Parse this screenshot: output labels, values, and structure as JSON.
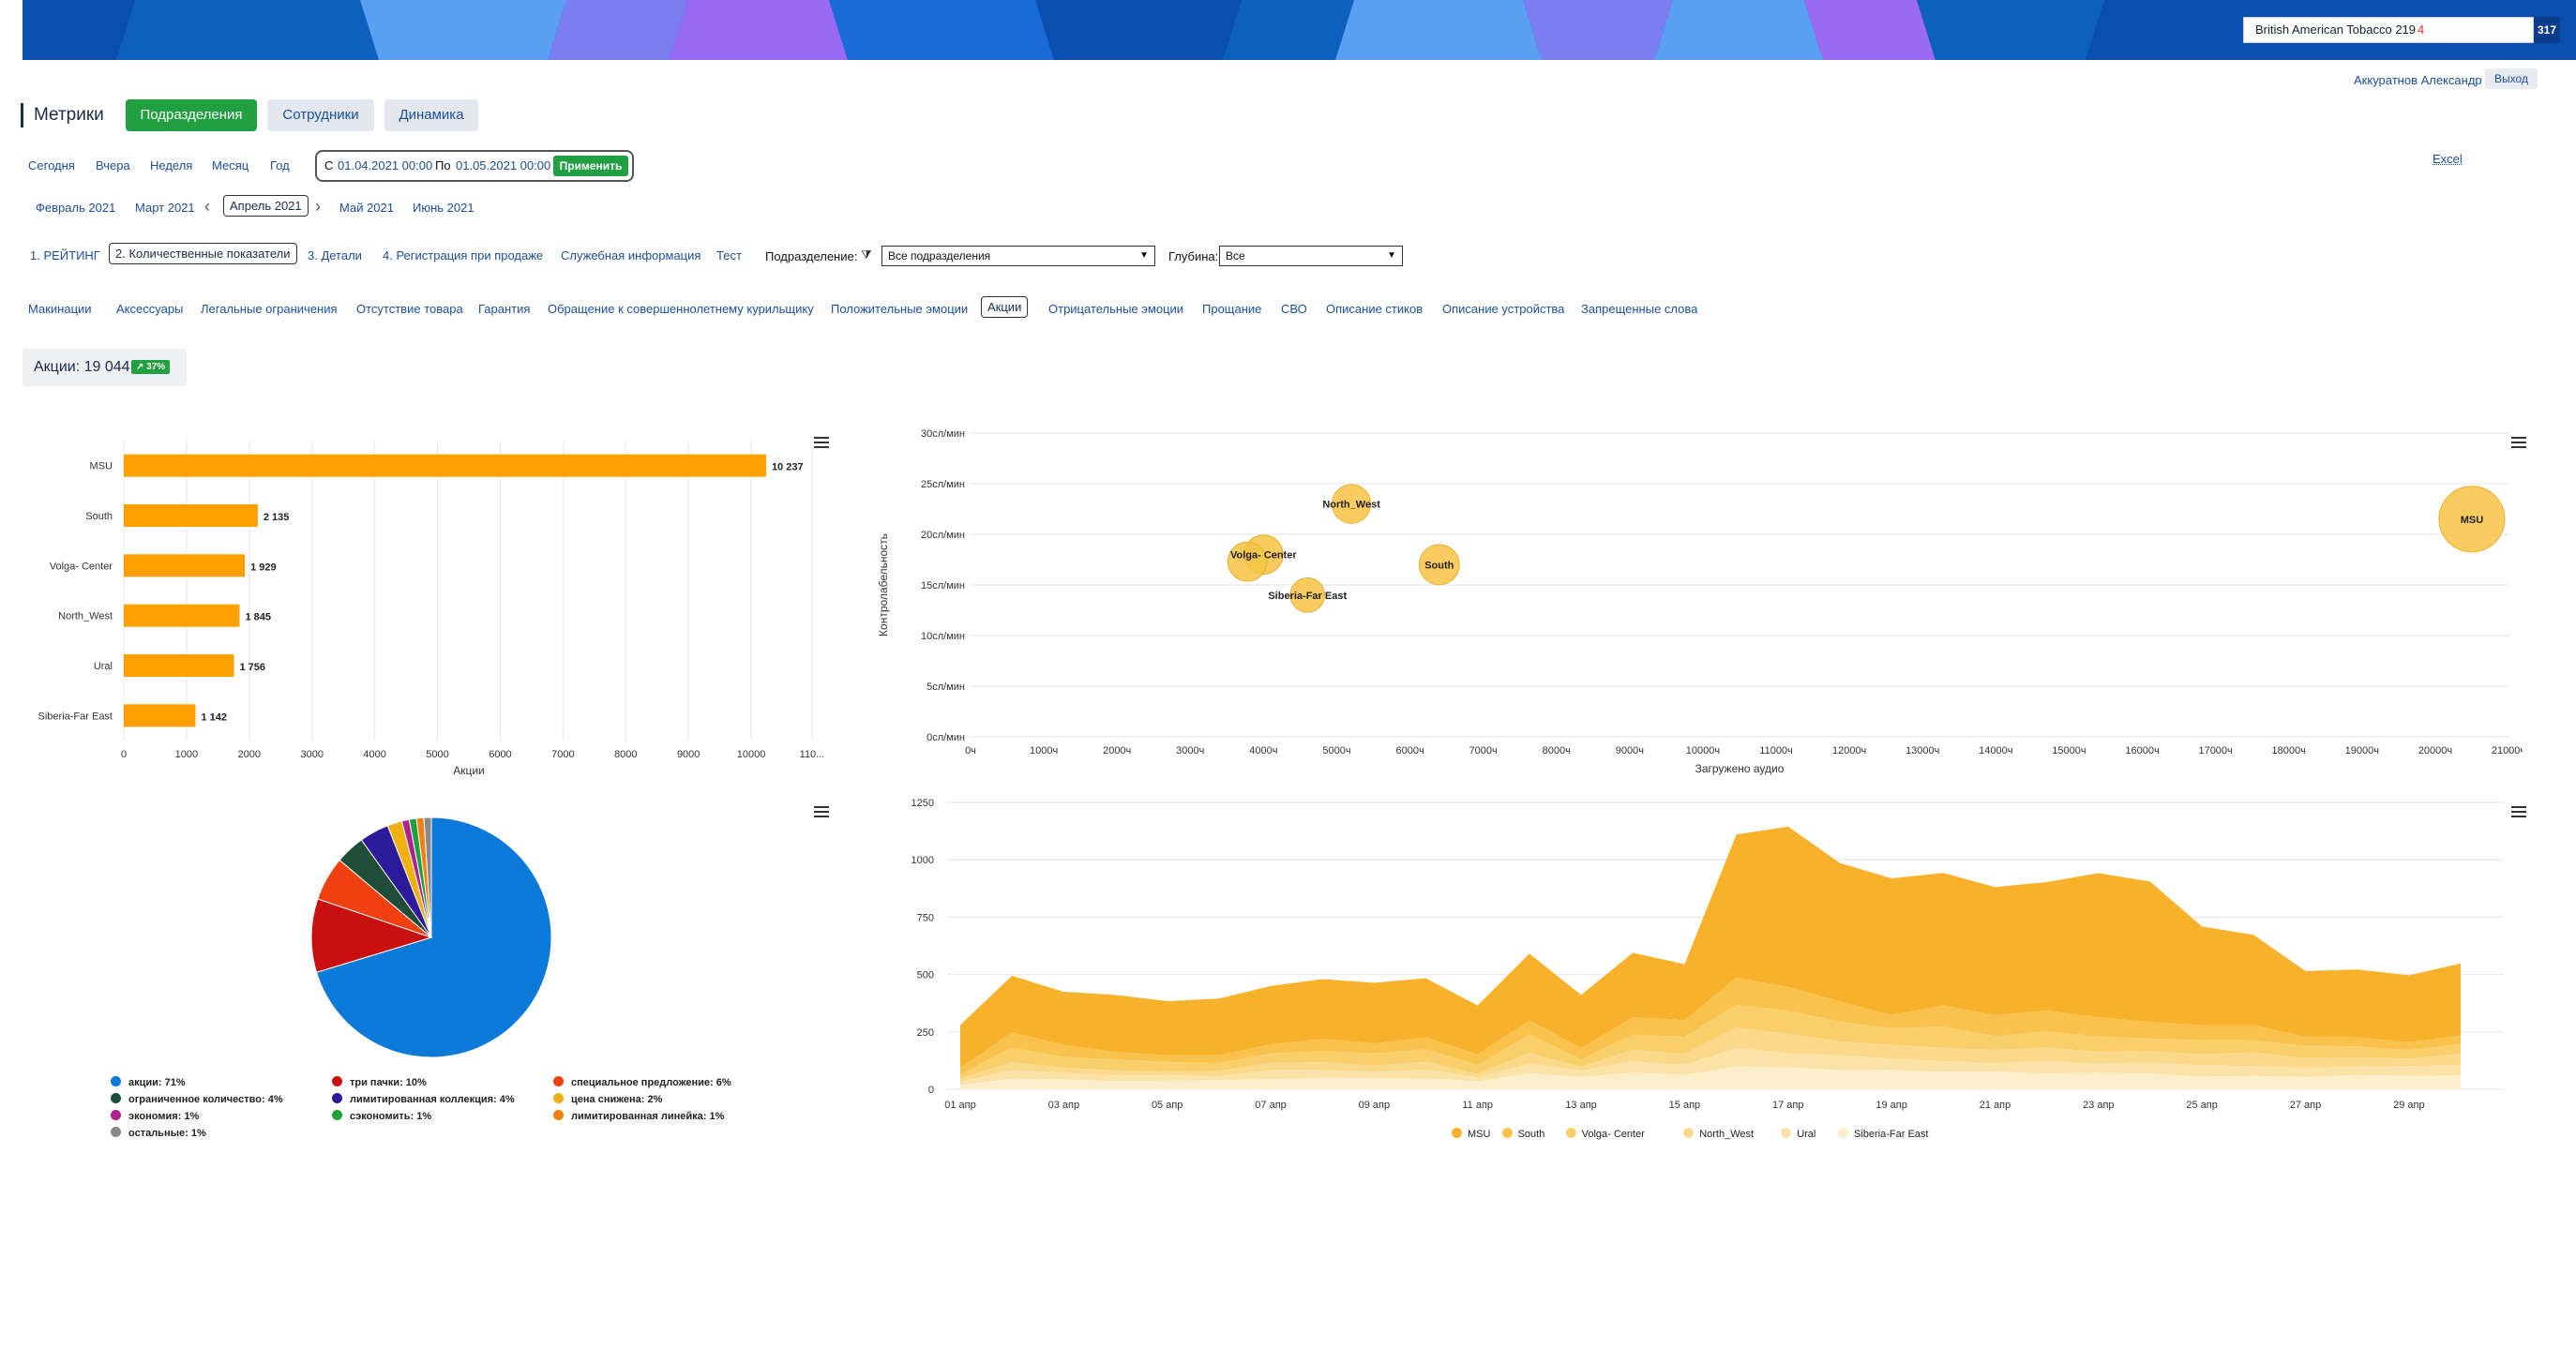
{
  "header": {
    "org_selector": "British American Tobacco 219",
    "org_badge": "4",
    "org_count": "317",
    "user_name": "Аккуратнов Александр",
    "logout": "Выход"
  },
  "page": {
    "title": "Метрики",
    "tabs": [
      {
        "label": "Подразделения",
        "active": true
      },
      {
        "label": "Сотрудники",
        "active": false
      },
      {
        "label": "Динамика",
        "active": false
      }
    ]
  },
  "periods": [
    "Сегодня",
    "Вчера",
    "Неделя",
    "Месяц",
    "Год"
  ],
  "date_range": {
    "from_label": "С",
    "from": "01.04.2021 00:00",
    "to_label": "По",
    "to": "01.05.2021 00:00",
    "apply": "Применить"
  },
  "excel": "Excel",
  "months": {
    "items": [
      "Февраль 2021",
      "Март 2021",
      "Апрель 2021",
      "Май 2021",
      "Июнь 2021"
    ],
    "selected": "Апрель 2021"
  },
  "report_tabs": {
    "items": [
      "1. РЕЙТИНГ",
      "2. Количественные показатели",
      "3. Детали",
      "4. Регистрация при продаже",
      "Служебная информация",
      "Тест"
    ],
    "selected": "2. Количественные показатели"
  },
  "filters": {
    "division_label": "Подразделение:",
    "division_value": "Все подразделения",
    "depth_label": "Глубина:",
    "depth_value": "Все"
  },
  "categories": {
    "items": [
      "Макинации",
      "Аксессуары",
      "Легальные ограничения",
      "Отсутствие товара",
      "Гарантия",
      "Обращение к совершеннолетнему курильщику",
      "Положительные эмоции",
      "Акции",
      "Отрицательные эмоции",
      "Прощание",
      "СВО",
      "Описание стиков",
      "Описание устройства",
      "Запрещенные слова"
    ],
    "selected": "Акции"
  },
  "summary": {
    "label": "Акции: 19 044",
    "trend": "↗ 37%",
    "trend_color": "#20a040"
  },
  "colors": {
    "accent": "#20a040",
    "bar": "#ff9f00",
    "pie_main": "#0b7ad8",
    "bubble": "#f7c343"
  },
  "chart_data": [
    {
      "type": "bar",
      "orientation": "horizontal",
      "categories": [
        "MSU",
        "South",
        "Volga- Center",
        "North_West",
        "Ural",
        "Siberia-Far East"
      ],
      "values": [
        10237,
        2135,
        1929,
        1845,
        1756,
        1142
      ],
      "value_labels": [
        "10 237",
        "2 135",
        "1 929",
        "1 845",
        "1 756",
        "1 142"
      ],
      "xlabel": "Акции",
      "xticks": [
        "0",
        "1000",
        "2000",
        "3000",
        "4000",
        "5000",
        "6000",
        "7000",
        "8000",
        "9000",
        "10000",
        "110..."
      ],
      "xlim": [
        0,
        11000
      ]
    },
    {
      "type": "scatter",
      "subtype": "bubble",
      "xlabel": "Загружено аудио",
      "ylabel": "Контролабельность",
      "xticks": [
        "0ч",
        "1000ч",
        "2000ч",
        "3000ч",
        "4000ч",
        "5000ч",
        "6000ч",
        "7000ч",
        "8000ч",
        "9000ч",
        "10000ч",
        "11000ч",
        "12000ч",
        "13000ч",
        "14000ч",
        "15000ч",
        "16000ч",
        "17000ч",
        "18000ч",
        "19000ч",
        "20000ч",
        "21000ч"
      ],
      "yticks": [
        "0сл/мин",
        "5сл/мин",
        "10сл/мин",
        "15сл/мин",
        "20сл/мин",
        "25сл/мин",
        "30сл/мин"
      ],
      "xlim": [
        0,
        21000
      ],
      "ylim": [
        0,
        30
      ],
      "points": [
        {
          "label": "North_West",
          "x": 5200,
          "y": 23,
          "size": 1845
        },
        {
          "label": "Volga- Center",
          "x": 4000,
          "y": 18,
          "size": 1929
        },
        {
          "label": "",
          "x": 3780,
          "y": 17.3,
          "size": 1929
        },
        {
          "label": "Siberia-Far East",
          "x": 4600,
          "y": 14,
          "size": 1142
        },
        {
          "label": "South",
          "x": 6400,
          "y": 17,
          "size": 2135
        },
        {
          "label": "MSU",
          "x": 20500,
          "y": 21.5,
          "size": 10237
        }
      ]
    },
    {
      "type": "pie",
      "slices": [
        {
          "label": "акции: 71%",
          "value": 71,
          "color": "#0b7ad8"
        },
        {
          "label": "три пачки: 10%",
          "value": 10,
          "color": "#c81010"
        },
        {
          "label": "специальное предложение: 6%",
          "value": 6,
          "color": "#f04010"
        },
        {
          "label": "ограниченное количество: 4%",
          "value": 4,
          "color": "#1f4d3a"
        },
        {
          "label": "лимитированная коллекция: 4%",
          "value": 4,
          "color": "#2c1a9a"
        },
        {
          "label": "цена снижена: 2%",
          "value": 2,
          "color": "#f0b010"
        },
        {
          "label": "экономия: 1%",
          "value": 1,
          "color": "#b02090"
        },
        {
          "label": "сэкономить: 1%",
          "value": 1,
          "color": "#20a040"
        },
        {
          "label": "лимитированная линейка: 1%",
          "value": 1,
          "color": "#f08010"
        },
        {
          "label": "остальные: 1%",
          "value": 1,
          "color": "#888888"
        }
      ]
    },
    {
      "type": "area",
      "stacked": true,
      "x": [
        "01 апр",
        "02 апр",
        "03 апр",
        "04 апр",
        "05 апр",
        "06 апр",
        "07 апр",
        "08 апр",
        "09 апр",
        "10 апр",
        "11 апр",
        "12 апр",
        "13 апр",
        "14 апр",
        "15 апр",
        "16 апр",
        "17 апр",
        "18 апр",
        "19 апр",
        "20 апр",
        "21 апр",
        "22 апр",
        "23 апр",
        "24 апр",
        "25 апр",
        "26 апр",
        "27 апр",
        "28 апр",
        "29 апр",
        "30 апр"
      ],
      "xticks": [
        "01 апр",
        "03 апр",
        "05 апр",
        "07 апр",
        "09 апр",
        "11 апр",
        "13 апр",
        "15 апр",
        "17 апр",
        "19 апр",
        "21 апр",
        "23 апр",
        "25 апр",
        "27 апр",
        "29 апр"
      ],
      "yticks": [
        "0",
        "250",
        "500",
        "750",
        "1000",
        "1250"
      ],
      "ylim": [
        0,
        1250
      ],
      "series": [
        {
          "name": "MSU",
          "color": "#f7b12a",
          "values": [
            186,
            247,
            232,
            248,
            236,
            247,
            254,
            260,
            264,
            258,
            213,
            291,
            231,
            281,
            244,
            624,
            699,
            603,
            595,
            577,
            558,
            560,
            628,
            612,
            429,
            393,
            287,
            295,
            292,
            312
          ]
        },
        {
          "name": "South",
          "color": "#f8c24c",
          "values": [
            29,
            68,
            52,
            34,
            29,
            34,
            40,
            54,
            44,
            52,
            46,
            62,
            49,
            76,
            72,
            118,
            104,
            88,
            58,
            94,
            91,
            91,
            84,
            72,
            66,
            67,
            38,
            40,
            34,
            39
          ]
        },
        {
          "name": "Volga- Center",
          "color": "#f9cf6c",
          "values": [
            18,
            62,
            47,
            47,
            40,
            34,
            41,
            48,
            54,
            54,
            39,
            80,
            33,
            66,
            75,
            98,
            100,
            86,
            72,
            91,
            61,
            70,
            67,
            55,
            62,
            52,
            54,
            49,
            37,
            43
          ]
        },
        {
          "name": "North_West",
          "color": "#fad98a",
          "values": [
            13,
            35,
            22,
            23,
            17,
            24,
            31,
            34,
            26,
            35,
            15,
            47,
            17,
            51,
            48,
            91,
            85,
            61,
            60,
            59,
            57,
            59,
            51,
            49,
            48,
            60,
            42,
            39,
            33,
            49
          ]
        },
        {
          "name": "Ural",
          "color": "#fbe3a8",
          "values": [
            15,
            37,
            29,
            24,
            24,
            16,
            40,
            34,
            28,
            38,
            17,
            42,
            28,
            49,
            43,
            80,
            62,
            65,
            50,
            46,
            38,
            54,
            40,
            49,
            49,
            43,
            41,
            37,
            43,
            45
          ]
        },
        {
          "name": "Siberia-Far East",
          "color": "#fdeecb",
          "values": [
            19,
            46,
            43,
            35,
            38,
            40,
            44,
            50,
            48,
            47,
            35,
            69,
            53,
            72,
            63,
            99,
            95,
            83,
            84,
            76,
            76,
            69,
            72,
            68,
            55,
            58,
            53,
            62,
            58,
            60
          ]
        }
      ]
    }
  ]
}
